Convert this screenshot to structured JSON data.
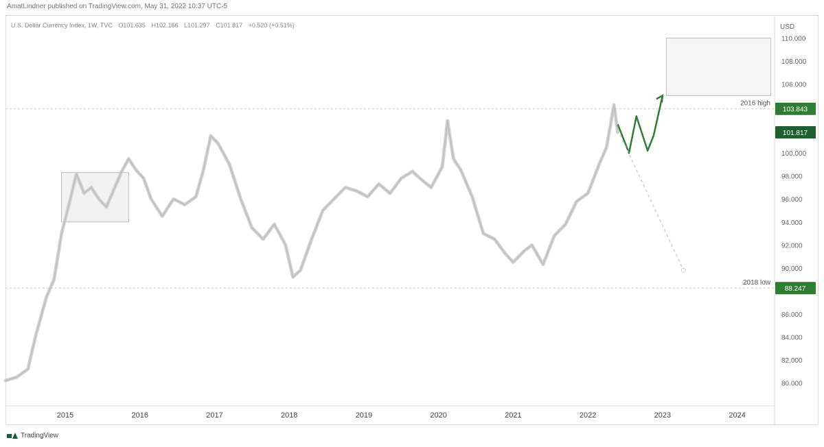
{
  "header": {
    "byline": "AmatLindner published on TradingView.com, May 31, 2022 10:37 UTC-5",
    "legend": {
      "symbol": "U.S. Dollar Currency Index, 1W, TVC",
      "open": "O101.635",
      "high": "H102.166",
      "low": "L101.297",
      "close": "C101.817",
      "change": "+0.520 (+0.51%)"
    }
  },
  "footer": {
    "brand": "TradingView"
  },
  "colors": {
    "candles": "#d2d2d2",
    "accent": "#2e7d32",
    "badge_dark": "#1e5e2f",
    "guide": "#c8c8c8"
  },
  "chart_data": {
    "type": "line",
    "title": "",
    "ylabel": "USD",
    "xlabel": "",
    "ylim": [
      78,
      112
    ],
    "xlim": [
      2014.2,
      2024.5
    ],
    "x_ticks": [
      "2015",
      "2016",
      "2017",
      "2018",
      "2019",
      "2020",
      "2021",
      "2022",
      "2023",
      "2024"
    ],
    "y_ticks": [
      "80.000",
      "82.000",
      "84.000",
      "86.000",
      "88.000",
      "90.000",
      "92.000",
      "94.000",
      "96.000",
      "98.000",
      "100.000",
      "102.000",
      "104.000",
      "106.000",
      "108.000",
      "110.000"
    ],
    "grid": false,
    "series": [
      {
        "values_x": [
          2014.2,
          2014.35,
          2014.5,
          2014.6,
          2014.75,
          2014.85,
          2014.95,
          2015.05,
          2015.15,
          2015.25,
          2015.35,
          2015.45,
          2015.55,
          2015.65,
          2015.75,
          2015.85,
          2015.95,
          2016.05,
          2016.15,
          2016.3,
          2016.45,
          2016.6,
          2016.75,
          2016.85,
          2016.95,
          2017.05,
          2017.2,
          2017.35,
          2017.5,
          2017.65,
          2017.8,
          2017.95,
          2018.05,
          2018.15,
          2018.3,
          2018.45,
          2018.6,
          2018.75,
          2018.9,
          2019.05,
          2019.2,
          2019.35,
          2019.5,
          2019.65,
          2019.75,
          2019.9,
          2020.05,
          2020.12,
          2020.2,
          2020.3,
          2020.45,
          2020.6,
          2020.75,
          2020.9,
          2021.0,
          2021.15,
          2021.25,
          2021.4,
          2021.55,
          2021.7,
          2021.85,
          2022.0,
          2022.15,
          2022.25,
          2022.35,
          2022.4
        ],
        "values_y": [
          80.2,
          80.5,
          81.2,
          84.0,
          87.5,
          89.0,
          93.0,
          95.5,
          98.2,
          96.5,
          97.0,
          96.0,
          95.3,
          96.8,
          98.3,
          99.5,
          98.5,
          97.8,
          96.0,
          94.5,
          96.0,
          95.5,
          96.2,
          98.5,
          101.5,
          100.8,
          99.0,
          96.0,
          93.5,
          92.5,
          93.8,
          92.0,
          89.2,
          89.8,
          92.5,
          95.0,
          96.0,
          97.0,
          96.7,
          96.2,
          97.3,
          96.5,
          97.8,
          98.4,
          97.8,
          97.0,
          98.8,
          102.8,
          99.5,
          98.5,
          96.2,
          93.0,
          92.5,
          91.2,
          90.5,
          91.5,
          92.0,
          90.3,
          92.8,
          93.8,
          95.8,
          96.5,
          99.0,
          100.5,
          104.2,
          101.8
        ]
      }
    ],
    "reference_lines": [
      {
        "label": "2016 high",
        "value": 103.843,
        "value_label": "103.843"
      },
      {
        "label": "2018 low",
        "value": 88.247,
        "value_label": "88.247"
      }
    ],
    "current_price_label": "101.817",
    "target_box": {
      "x_start": 2023.05,
      "x_end": 2024.45,
      "y_low": 105.0,
      "y_high": 110.0
    },
    "range_box": {
      "x_start": 2014.95,
      "x_end": 2015.85,
      "y_low": 94.0,
      "y_high": 98.3
    },
    "projection_up": {
      "x": [
        2022.4,
        2022.55,
        2022.65,
        2022.8,
        2022.88,
        2023.0
      ],
      "y": [
        102.5,
        100.0,
        103.2,
        100.2,
        101.5,
        105.0
      ]
    },
    "projection_down": {
      "x": [
        2022.4,
        2023.28
      ],
      "y": [
        102.0,
        89.8
      ]
    }
  }
}
